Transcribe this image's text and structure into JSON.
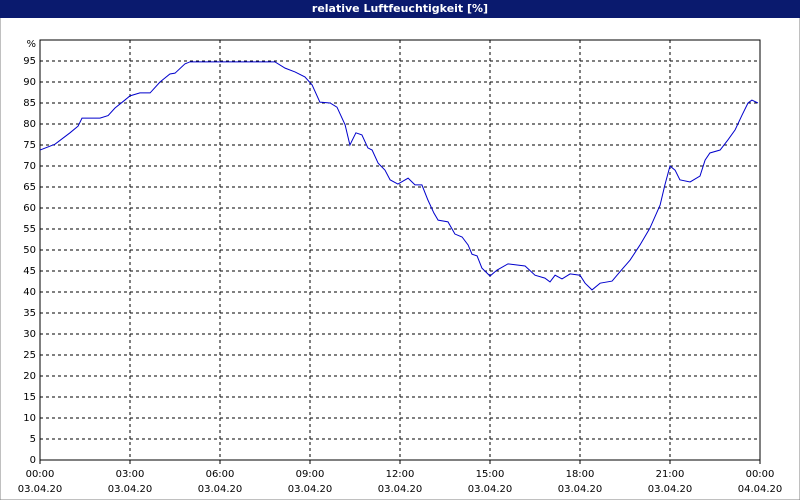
{
  "chart_data": {
    "type": "line",
    "title": "relative Luftfeuchtigkeit [%]",
    "y_unit": "%",
    "xlim": [
      0,
      24
    ],
    "xticks": [
      {
        "value": 0,
        "label": "00:00"
      },
      {
        "value": 3,
        "label": "03:00"
      },
      {
        "value": 6,
        "label": "06:00"
      },
      {
        "value": 9,
        "label": "09:00"
      },
      {
        "value": 12,
        "label": "12:00"
      },
      {
        "value": 15,
        "label": "15:00"
      },
      {
        "value": 18,
        "label": "18:00"
      },
      {
        "value": 21,
        "label": "21:00"
      },
      {
        "value": 24,
        "label": "00:00"
      }
    ],
    "xtick_dates": [
      "03.04.20",
      "03.04.20",
      "03.04.20",
      "03.04.20",
      "03.04.20",
      "03.04.20",
      "03.04.20",
      "03.04.20",
      "04.04.20"
    ],
    "ylim": [
      0,
      100
    ],
    "yticks": [
      0,
      5,
      10,
      15,
      20,
      25,
      30,
      35,
      40,
      45,
      50,
      55,
      60,
      65,
      70,
      75,
      80,
      85,
      90,
      95
    ],
    "grid": true,
    "x": [
      0,
      0.5,
      1.0,
      1.27,
      1.4,
      2.0,
      2.27,
      2.5,
      2.83,
      3.0,
      3.33,
      3.67,
      4.0,
      4.33,
      4.5,
      4.83,
      5.0,
      7.83,
      8.17,
      8.5,
      8.83,
      9.07,
      9.33,
      9.67,
      9.9,
      10.17,
      10.33,
      10.53,
      10.73,
      10.93,
      11.07,
      11.27,
      11.5,
      11.67,
      11.93,
      12.27,
      12.5,
      12.73,
      12.93,
      13.13,
      13.27,
      13.6,
      13.83,
      14.07,
      14.27,
      14.4,
      14.57,
      14.73,
      15.0,
      15.23,
      15.6,
      16.17,
      16.5,
      16.83,
      17.0,
      17.17,
      17.4,
      17.67,
      18.0,
      18.17,
      18.4,
      18.67,
      19.07,
      19.33,
      19.67,
      20.0,
      20.33,
      20.67,
      20.83,
      21.0,
      21.17,
      21.33,
      21.67,
      22.0,
      22.17,
      22.33,
      22.67,
      22.93,
      23.17,
      23.4,
      23.6,
      23.73,
      23.93
    ],
    "series": [
      {
        "name": "relative Luftfeuchtigkeit",
        "color": "#0000cc",
        "values": [
          73.8,
          75.2,
          77.9,
          79.5,
          81.4,
          81.4,
          82,
          83.8,
          85.7,
          86.7,
          87.4,
          87.4,
          90,
          91.9,
          92.1,
          94.3,
          94.8,
          94.8,
          93.3,
          92.4,
          91.2,
          89.3,
          85.2,
          85,
          84,
          79.8,
          75,
          77.9,
          77.4,
          74.3,
          73.8,
          70.7,
          69,
          66.7,
          65.7,
          67.1,
          65.5,
          65.5,
          61.9,
          58.8,
          57.1,
          56.7,
          53.8,
          53.1,
          51.2,
          49,
          48.6,
          45.7,
          43.8,
          45.2,
          46.7,
          46.2,
          44,
          43.3,
          42.4,
          44,
          43.1,
          44.3,
          44,
          42.1,
          40.5,
          42.1,
          42.6,
          44.8,
          47.6,
          51.2,
          55.2,
          60.7,
          65.5,
          70,
          69,
          66.7,
          66.2,
          67.6,
          71.4,
          73.1,
          73.8,
          76.2,
          78.6,
          82.1,
          85,
          85.7,
          85
        ]
      }
    ]
  }
}
